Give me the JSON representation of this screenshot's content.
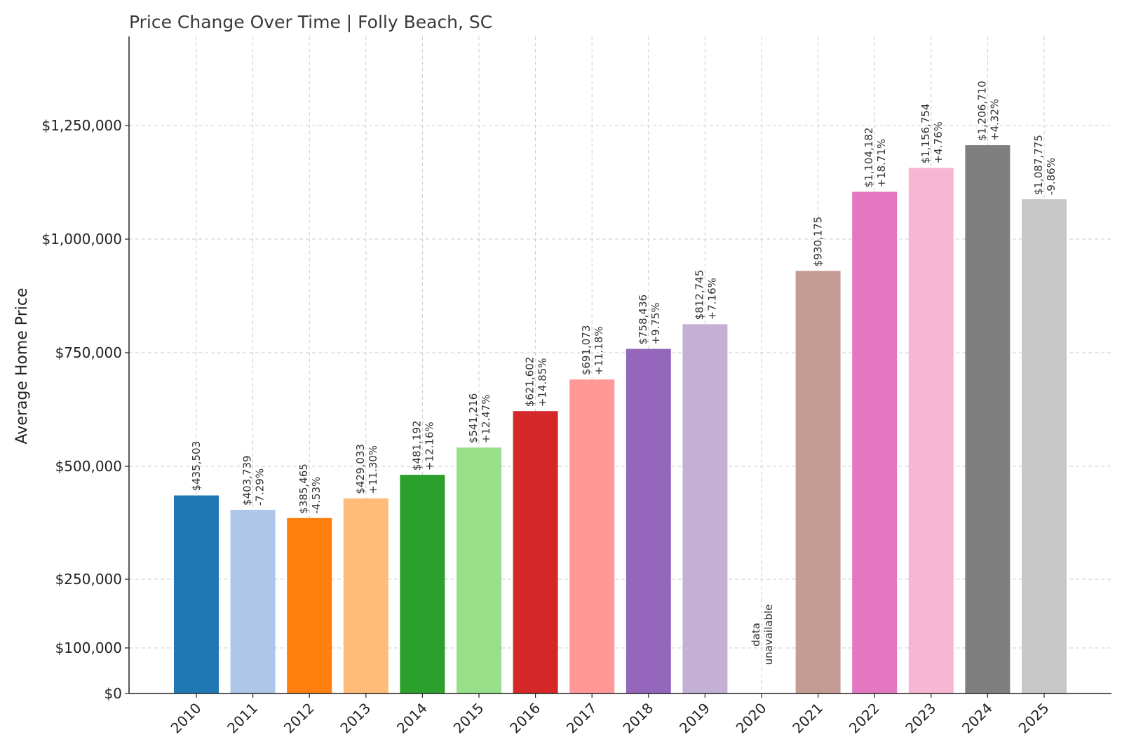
{
  "chart_data": {
    "type": "bar",
    "title": "Price Change Over Time | Folly Beach, SC",
    "xlabel": "",
    "ylabel": "Average Home Price",
    "ylim": [
      0,
      1450000
    ],
    "yticks": [
      0,
      100000,
      250000,
      500000,
      750000,
      1000000,
      1250000
    ],
    "ytick_labels": [
      "$0",
      "$100,000",
      "$250,000",
      "$500,000",
      "$750,000",
      "$1,000,000",
      "$1,250,000"
    ],
    "grid": true,
    "categories": [
      "2010",
      "2011",
      "2012",
      "2013",
      "2014",
      "2015",
      "2016",
      "2017",
      "2018",
      "2019",
      "2020",
      "2021",
      "2022",
      "2023",
      "2024",
      "2025"
    ],
    "values": [
      435503,
      403739,
      385465,
      429033,
      481192,
      541216,
      621602,
      691073,
      758436,
      812745,
      null,
      930175,
      1104182,
      1156754,
      1206710,
      1087775
    ],
    "value_labels": [
      "$435,503",
      "$403,739",
      "$385,465",
      "$429,033",
      "$481,192",
      "$541,216",
      "$621,602",
      "$691,073",
      "$758,436",
      "$812,745",
      "",
      "$930,175",
      "$1,104,182",
      "$1,156,754",
      "$1,206,710",
      "$1,087,775"
    ],
    "change_labels": [
      "",
      "-7.29%",
      "-4.53%",
      "+11.30%",
      "+12.16%",
      "+12.47%",
      "+14.85%",
      "+11.18%",
      "+9.75%",
      "+7.16%",
      "",
      "",
      "+18.71%",
      "+4.76%",
      "+4.32%",
      "-9.86%"
    ],
    "missing_label": [
      "data",
      "unavailable"
    ],
    "colors": [
      "#1f77b4",
      "#aec7e8",
      "#ff7f0e",
      "#ffbb78",
      "#2ca02c",
      "#98df8a",
      "#d62728",
      "#ff9896",
      "#9467bd",
      "#c5b0d5",
      "#8c564b",
      "#c49c94",
      "#e377c2",
      "#f7b6d2",
      "#7f7f7f",
      "#c7c7c7"
    ]
  }
}
